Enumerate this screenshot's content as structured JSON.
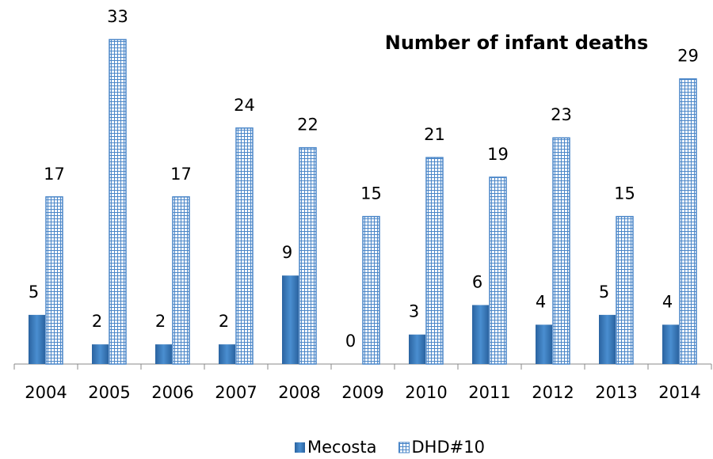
{
  "chart_data": {
    "type": "bar",
    "title": "Number of infant deaths",
    "categories": [
      "2004",
      "2005",
      "2006",
      "2007",
      "2008",
      "2009",
      "2010",
      "2011",
      "2012",
      "2013",
      "2014"
    ],
    "series": [
      {
        "name": "Mecosta",
        "color": "#3a7cc0",
        "values": [
          5,
          2,
          2,
          2,
          9,
          0,
          3,
          6,
          4,
          5,
          4
        ]
      },
      {
        "name": "DHD#10",
        "color": "#4a86c8",
        "pattern": "grid",
        "values": [
          17,
          33,
          17,
          24,
          22,
          15,
          21,
          19,
          23,
          15,
          29
        ]
      }
    ],
    "ylim": [
      0,
      33
    ],
    "legend": "bottom"
  }
}
